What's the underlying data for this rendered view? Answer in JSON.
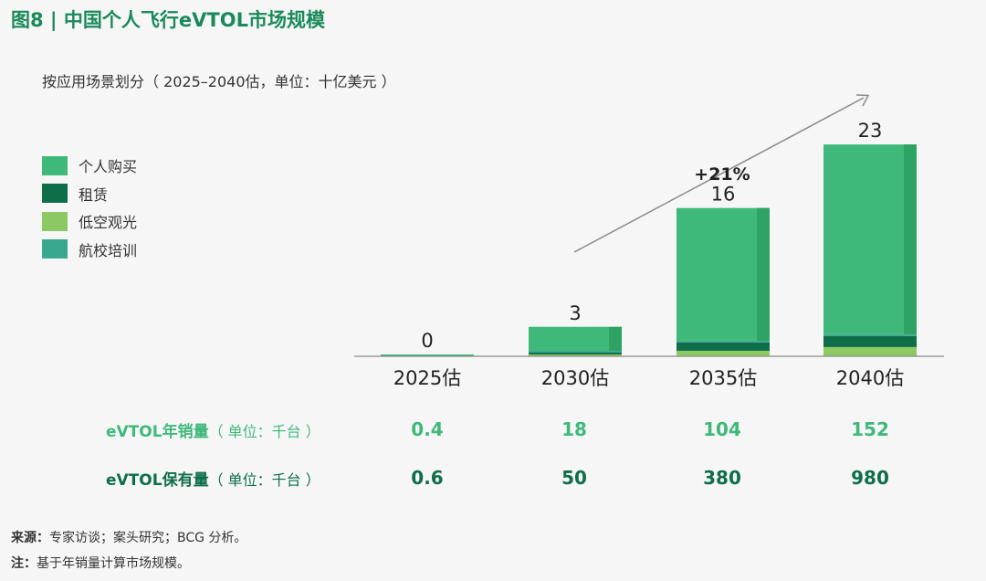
{
  "title": "图8 | 中国个人飞行eVTOL市场规模",
  "subtitle": "按应用场景划分（ 2025–2040估，单位：十亿美元 ）",
  "colors": {
    "title": "#1a8a5a",
    "personal": "#3fb97a",
    "personal_dark": "#2ea364",
    "rental": "#0e6e4a",
    "sightseeing": "#8cc963",
    "training": "#3aa88e",
    "sales_row": "#3fb97a",
    "fleet_row": "#0e6e4a"
  },
  "chart_data": {
    "type": "bar",
    "stacked": true,
    "categories": [
      "2025估",
      "2030估",
      "2035估",
      "2040估"
    ],
    "totals": [
      0,
      3,
      16,
      23
    ],
    "series": [
      {
        "name": "个人购买",
        "color_key": "personal",
        "values": [
          0.05,
          2.6,
          14.4,
          20.6
        ]
      },
      {
        "name": "租赁",
        "color_key": "rental",
        "values": [
          0.0,
          0.15,
          0.9,
          1.2
        ]
      },
      {
        "name": "低空观光",
        "color_key": "sightseeing",
        "values": [
          0.0,
          0.2,
          0.6,
          1.0
        ]
      },
      {
        "name": "航校培训",
        "color_key": "training",
        "values": [
          0.0,
          0.05,
          0.1,
          0.2
        ]
      }
    ],
    "annotation": {
      "label": "+21%",
      "type": "growth-arrow",
      "from_category": "2030估",
      "to_category": "2040估"
    },
    "ylim": [
      0,
      24.8
    ],
    "grid": false,
    "legend_position": "top-left"
  },
  "table": {
    "sales": {
      "label": "eVTOL年销量",
      "unit": "（ 单位：千台 ）",
      "values": [
        "0.4",
        "18",
        "104",
        "152"
      ]
    },
    "fleet": {
      "label": "eVTOL保有量",
      "unit": "（ 单位：千台 ）",
      "values": [
        "0.6",
        "50",
        "380",
        "980"
      ]
    }
  },
  "footer": {
    "source_label": "来源：",
    "source_text": "专家访谈；案头研究；BCG 分析。",
    "note_label": "注：",
    "note_text": "基于年销量计算市场规模。"
  }
}
